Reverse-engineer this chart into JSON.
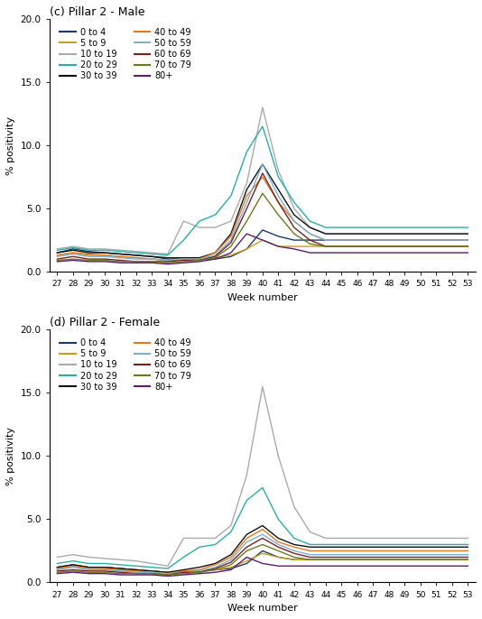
{
  "weeks": [
    27,
    28,
    29,
    30,
    31,
    32,
    33,
    34,
    35,
    36,
    37,
    38,
    39,
    40,
    41,
    42,
    43,
    44,
    45,
    46,
    47,
    48,
    49,
    50,
    51,
    52,
    53
  ],
  "age_groups": [
    "0 to 4",
    "5 to 9",
    "10 to 19",
    "20 to 29",
    "30 to 39",
    "40 to 49",
    "50 to 59",
    "60 to 69",
    "70 to 79",
    "80+"
  ],
  "colors": {
    "0 to 4": "#1a3a6b",
    "5 to 9": "#c8a020",
    "10 to 19": "#aaaaaa",
    "20 to 29": "#2ab0a0",
    "30 to 39": "#111111",
    "40 to 49": "#e07820",
    "50 to 59": "#7ab0d0",
    "60 to 69": "#7a2020",
    "70 to 79": "#6b7a20",
    "80+": "#5a2070"
  },
  "male": {
    "0 to 4": [
      1.5,
      1.8,
      1.6,
      1.5,
      1.4,
      1.3,
      1.2,
      1.0,
      1.0,
      1.0,
      1.0,
      1.2,
      1.8,
      3.3,
      2.8,
      2.5,
      2.5,
      2.5,
      2.5,
      2.5,
      2.5,
      2.5,
      2.5,
      2.5,
      2.5,
      2.5,
      2.5
    ],
    "5 to 9": [
      1.3,
      1.5,
      1.4,
      1.3,
      1.2,
      1.1,
      1.0,
      0.9,
      1.0,
      1.0,
      1.1,
      1.3,
      1.8,
      2.5,
      2.0,
      2.0,
      2.0,
      2.0,
      2.0,
      2.0,
      2.0,
      2.0,
      2.0,
      2.0,
      2.0,
      2.0,
      2.0
    ],
    "10 to 19": [
      1.8,
      2.0,
      1.8,
      1.8,
      1.7,
      1.6,
      1.5,
      1.4,
      4.0,
      3.5,
      3.5,
      4.0,
      7.0,
      13.0,
      8.0,
      5.0,
      3.5,
      3.0,
      3.0,
      3.0,
      3.0,
      3.0,
      3.0,
      3.0,
      3.0,
      3.0,
      3.0
    ],
    "20 to 29": [
      1.7,
      1.9,
      1.7,
      1.7,
      1.6,
      1.5,
      1.4,
      1.3,
      2.5,
      4.0,
      4.5,
      6.0,
      9.5,
      11.5,
      7.5,
      5.5,
      4.0,
      3.5,
      3.5,
      3.5,
      3.5,
      3.5,
      3.5,
      3.5,
      3.5,
      3.5,
      3.5
    ],
    "30 to 39": [
      1.5,
      1.7,
      1.5,
      1.5,
      1.4,
      1.3,
      1.2,
      1.1,
      1.1,
      1.1,
      1.5,
      3.0,
      6.5,
      8.5,
      6.5,
      4.5,
      3.5,
      3.0,
      3.0,
      3.0,
      3.0,
      3.0,
      3.0,
      3.0,
      3.0,
      3.0,
      3.0
    ],
    "40 to 49": [
      1.3,
      1.5,
      1.3,
      1.3,
      1.2,
      1.1,
      1.0,
      0.9,
      1.0,
      1.0,
      1.5,
      2.8,
      6.0,
      7.5,
      5.5,
      4.0,
      3.0,
      2.5,
      2.5,
      2.5,
      2.5,
      2.5,
      2.5,
      2.5,
      2.5,
      2.5,
      2.5
    ],
    "50 to 59": [
      1.2,
      1.4,
      1.2,
      1.2,
      1.1,
      1.0,
      1.0,
      0.9,
      1.0,
      1.0,
      1.3,
      2.5,
      5.5,
      8.5,
      6.0,
      4.0,
      3.0,
      2.5,
      2.5,
      2.5,
      2.5,
      2.5,
      2.5,
      2.5,
      2.5,
      2.5,
      2.5
    ],
    "60 to 69": [
      1.0,
      1.2,
      1.0,
      1.0,
      0.9,
      0.8,
      0.8,
      0.8,
      0.9,
      0.9,
      1.2,
      2.3,
      5.0,
      7.8,
      5.5,
      3.5,
      2.5,
      2.0,
      2.0,
      2.0,
      2.0,
      2.0,
      2.0,
      2.0,
      2.0,
      2.0,
      2.0
    ],
    "70 to 79": [
      0.9,
      1.0,
      0.9,
      0.9,
      0.8,
      0.8,
      0.8,
      0.7,
      0.8,
      0.9,
      1.1,
      2.0,
      4.0,
      6.2,
      4.5,
      3.0,
      2.2,
      2.0,
      2.0,
      2.0,
      2.0,
      2.0,
      2.0,
      2.0,
      2.0,
      2.0,
      2.0
    ],
    "80+": [
      0.8,
      0.9,
      0.8,
      0.8,
      0.7,
      0.7,
      0.7,
      0.6,
      0.7,
      0.8,
      1.0,
      1.5,
      3.0,
      2.5,
      2.0,
      1.8,
      1.5,
      1.5,
      1.5,
      1.5,
      1.5,
      1.5,
      1.5,
      1.5,
      1.5,
      1.5,
      1.5
    ]
  },
  "female": {
    "0 to 4": [
      1.2,
      1.4,
      1.2,
      1.2,
      1.1,
      1.0,
      0.9,
      0.8,
      0.9,
      0.9,
      1.0,
      1.1,
      1.5,
      2.5,
      2.0,
      1.8,
      1.8,
      1.8,
      1.8,
      1.8,
      1.8,
      1.8,
      1.8,
      1.8,
      1.8,
      1.8,
      1.8
    ],
    "5 to 9": [
      1.1,
      1.3,
      1.2,
      1.1,
      1.0,
      0.9,
      0.9,
      0.8,
      0.9,
      0.9,
      1.0,
      1.2,
      1.7,
      2.3,
      2.0,
      1.8,
      1.8,
      1.8,
      1.8,
      1.8,
      1.8,
      1.8,
      1.8,
      1.8,
      1.8,
      1.8,
      1.8
    ],
    "10 to 19": [
      2.0,
      2.2,
      2.0,
      1.9,
      1.8,
      1.7,
      1.5,
      1.3,
      3.5,
      3.5,
      3.5,
      4.5,
      8.5,
      15.5,
      10.0,
      6.0,
      4.0,
      3.5,
      3.5,
      3.5,
      3.5,
      3.5,
      3.5,
      3.5,
      3.5,
      3.5,
      3.5
    ],
    "20 to 29": [
      1.5,
      1.7,
      1.5,
      1.5,
      1.4,
      1.3,
      1.2,
      1.1,
      2.0,
      2.8,
      3.0,
      4.0,
      6.5,
      7.5,
      5.0,
      3.5,
      3.0,
      3.0,
      3.0,
      3.0,
      3.0,
      3.0,
      3.0,
      3.0,
      3.0,
      3.0,
      3.0
    ],
    "30 to 39": [
      1.2,
      1.4,
      1.2,
      1.2,
      1.1,
      1.0,
      0.9,
      0.8,
      1.0,
      1.2,
      1.5,
      2.2,
      3.8,
      4.5,
      3.5,
      3.0,
      2.8,
      2.8,
      2.8,
      2.8,
      2.8,
      2.8,
      2.8,
      2.8,
      2.8,
      2.8,
      2.8
    ],
    "40 to 49": [
      1.1,
      1.3,
      1.1,
      1.1,
      1.0,
      0.9,
      0.8,
      0.7,
      0.9,
      1.0,
      1.4,
      2.0,
      3.5,
      4.2,
      3.2,
      2.8,
      2.5,
      2.5,
      2.5,
      2.5,
      2.5,
      2.5,
      2.5,
      2.5,
      2.5,
      2.5,
      2.5
    ],
    "50 to 59": [
      1.0,
      1.2,
      1.0,
      1.0,
      0.9,
      0.8,
      0.8,
      0.7,
      0.8,
      0.9,
      1.2,
      1.8,
      3.2,
      3.8,
      3.0,
      2.5,
      2.2,
      2.2,
      2.2,
      2.2,
      2.2,
      2.2,
      2.2,
      2.2,
      2.2,
      2.2,
      2.2
    ],
    "60 to 69": [
      0.9,
      1.0,
      0.9,
      0.9,
      0.8,
      0.7,
      0.7,
      0.6,
      0.8,
      0.8,
      1.1,
      1.6,
      2.8,
      3.5,
      2.8,
      2.3,
      2.0,
      2.0,
      2.0,
      2.0,
      2.0,
      2.0,
      2.0,
      2.0,
      2.0,
      2.0,
      2.0
    ],
    "70 to 79": [
      0.8,
      0.9,
      0.8,
      0.8,
      0.7,
      0.7,
      0.7,
      0.6,
      0.7,
      0.8,
      1.0,
      1.4,
      2.5,
      3.0,
      2.5,
      2.0,
      1.8,
      1.8,
      1.8,
      1.8,
      1.8,
      1.8,
      1.8,
      1.8,
      1.8,
      1.8,
      1.8
    ],
    "80+": [
      0.7,
      0.8,
      0.7,
      0.7,
      0.6,
      0.6,
      0.6,
      0.5,
      0.6,
      0.7,
      0.8,
      1.0,
      2.0,
      1.5,
      1.3,
      1.3,
      1.3,
      1.3,
      1.3,
      1.3,
      1.3,
      1.3,
      1.3,
      1.3,
      1.3,
      1.3,
      1.3
    ]
  },
  "title_male": "(c) Pillar 2 - Male",
  "title_female": "(d) Pillar 2 - Female",
  "ylabel": "% positivity",
  "xlabel": "Week number",
  "ylim": [
    0,
    20
  ],
  "yticks": [
    0.0,
    5.0,
    10.0,
    15.0,
    20.0
  ],
  "legend_col1": [
    "0 to 4",
    "10 to 19",
    "30 to 39",
    "50 to 59",
    "70 to 79"
  ],
  "legend_col2": [
    "5 to 9",
    "20 to 29",
    "40 to 49",
    "60 to 69",
    "80+"
  ]
}
